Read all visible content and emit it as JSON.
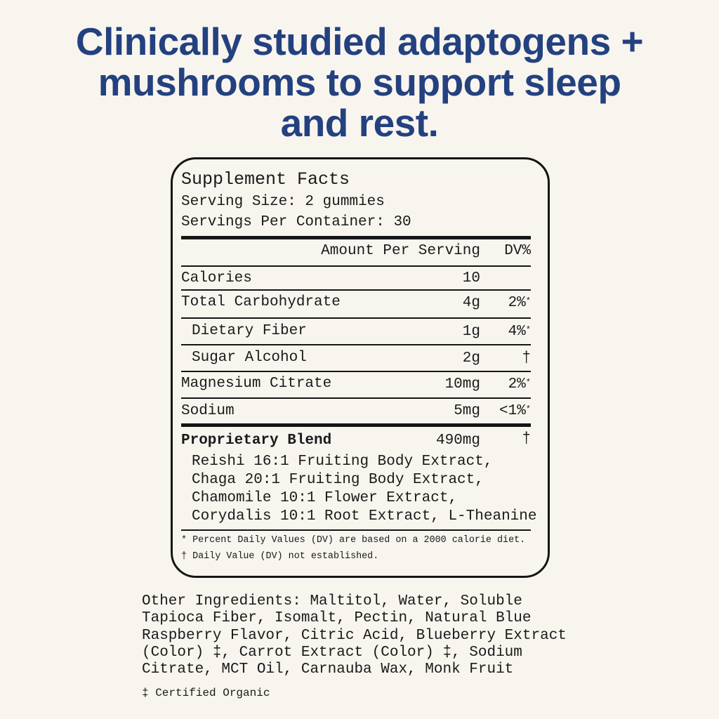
{
  "headline": [
    "Clinically studied adaptogens +",
    "mushrooms to support sleep",
    "and rest."
  ],
  "facts": {
    "title": "Supplement Facts",
    "serving_size": "Serving Size: 2 gummies",
    "servings_per_container": "Servings Per Container: 30",
    "col_amount": "Amount Per Serving",
    "col_dv": "DV%",
    "rows": [
      {
        "name": "Calories",
        "amount": "10",
        "dv": "",
        "mark": ""
      },
      {
        "name": "Total Carbohydrate",
        "amount": "4g",
        "dv": "2%",
        "mark": "*"
      },
      {
        "name": "Dietary Fiber",
        "amount": "1g",
        "dv": "4%",
        "mark": "*"
      },
      {
        "name": "Sugar Alcohol",
        "amount": "2g",
        "dv": "†",
        "mark": ""
      },
      {
        "name": "Magnesium Citrate",
        "amount": "10mg",
        "dv": "2%",
        "mark": "*"
      },
      {
        "name": "Sodium",
        "amount": "5mg",
        "dv": "<1%",
        "mark": "*"
      }
    ],
    "blend": {
      "name": "Proprietary Blend",
      "amount": "490mg",
      "dv": "†",
      "ingredients": [
        "Reishi 16:1 Fruiting Body Extract,",
        "Chaga 20:1 Fruiting Body Extract,",
        "Chamomile 10:1 Flower Extract,",
        "Corydalis 10:1 Root Extract, L-Theanine"
      ]
    },
    "footnotes": [
      "* Percent Daily Values (DV) are based on a 2000 calorie diet.",
      "† Daily Value (DV) not established."
    ]
  },
  "other_ingredients": [
    "Other Ingredients: Maltitol, Water, Soluble",
    "Tapioca Fiber, Isomalt, Pectin, Natural Blue",
    "Raspberry Flavor, Citric Acid, Blueberry Extract",
    "(Color) ‡, Carrot Extract (Color) ‡, Sodium",
    "Citrate, MCT Oil, Carnauba Wax, Monk Fruit"
  ],
  "certified_note": "‡ Certified Organic",
  "colors": {
    "headline": "#24417f",
    "background": "#f8f5ef",
    "ink": "#151515"
  }
}
